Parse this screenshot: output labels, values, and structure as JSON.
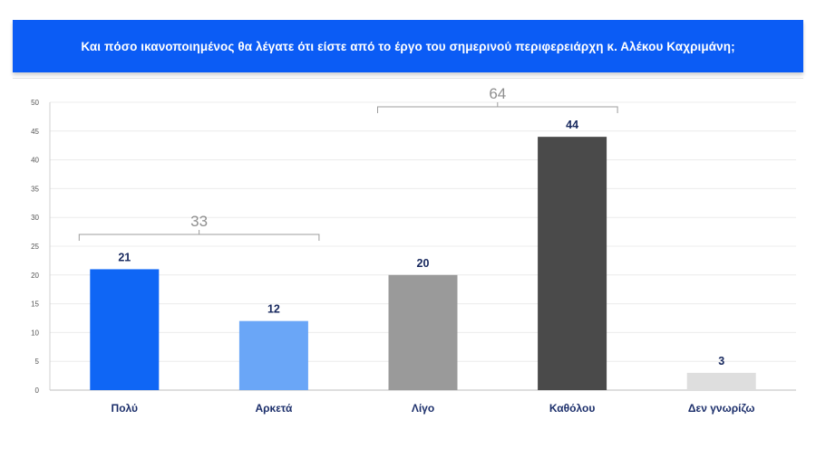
{
  "header": {
    "title": "Και πόσο ικανοποιημένος θα λέγατε ότι είστε από το έργο του σημερινού περιφερειάρχη κ. Αλέκου Καχριμάνη;"
  },
  "chart_data": {
    "type": "bar",
    "title": "",
    "xlabel": "",
    "ylabel": "",
    "ylim": [
      0,
      50
    ],
    "yticks": [
      0,
      5,
      10,
      15,
      20,
      25,
      30,
      35,
      40,
      45,
      50
    ],
    "grid": true,
    "categories": [
      "Πολύ",
      "Αρκετά",
      "Λίγο",
      "Καθόλου",
      "Δεν γνωρίζω"
    ],
    "values": [
      21,
      12,
      20,
      44,
      3
    ],
    "colors": [
      "#0f66f5",
      "#6aa6f7",
      "#9a9a9a",
      "#4a4a4a",
      "#dedede"
    ],
    "groups": [
      {
        "label": "33",
        "from": 0,
        "to": 1
      },
      {
        "label": "64",
        "from": 2,
        "to": 3
      }
    ]
  }
}
